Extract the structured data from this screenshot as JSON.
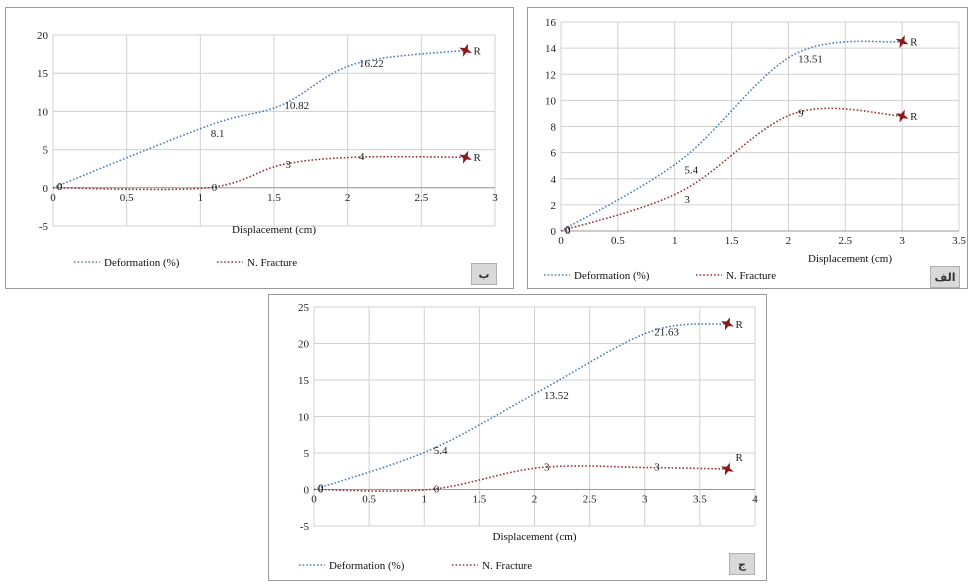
{
  "chart_data": [
    {
      "id": "b",
      "type": "line",
      "panel_label": "ب",
      "xlabel": "Displacement (cm)",
      "ylabel": "",
      "xlim": [
        0,
        3
      ],
      "ylim": [
        -5,
        20
      ],
      "xticks": [
        "0",
        "0.5",
        "1",
        "1.5",
        "2",
        "2.5",
        "3"
      ],
      "yticks": [
        "-5",
        "0",
        "5",
        "10",
        "15",
        "20"
      ],
      "grid": true,
      "legend_position": "bottom",
      "series": [
        {
          "name": "Deformation (%)",
          "color": "#4a7ebb",
          "x": [
            0,
            1.05,
            1.55,
            2.05,
            2.8
          ],
          "y": [
            0,
            8.1,
            10.82,
            16.22,
            18
          ],
          "labels": [
            "0",
            "8.1",
            "10.82",
            "16.22",
            "R"
          ]
        },
        {
          "name": "N. Fracture",
          "color": "#943634",
          "x": [
            0,
            1.05,
            1.55,
            2.05,
            2.8
          ],
          "y": [
            0,
            0,
            3,
            4,
            4
          ],
          "labels": [
            "0",
            "0",
            "3",
            "4",
            "R"
          ]
        }
      ]
    },
    {
      "id": "a",
      "type": "line",
      "panel_label": "الف",
      "xlabel": "Displacement (cm)",
      "ylabel": "",
      "xlim": [
        0,
        3.5
      ],
      "ylim": [
        0,
        16
      ],
      "xticks": [
        "0",
        "0.5",
        "1",
        "1.5",
        "2",
        "2.5",
        "3",
        "3.5"
      ],
      "yticks": [
        "0",
        "2",
        "4",
        "6",
        "8",
        "10",
        "12",
        "14",
        "16"
      ],
      "grid": true,
      "legend_position": "bottom",
      "series": [
        {
          "name": "Deformation (%)",
          "color": "#4a7ebb",
          "x": [
            0,
            1.05,
            2.05,
            3.0
          ],
          "y": [
            0,
            5.4,
            13.51,
            14.5
          ],
          "labels": [
            "0",
            "5.4",
            "13.51",
            "R"
          ]
        },
        {
          "name": "N. Fracture",
          "color": "#943634",
          "x": [
            0,
            1.05,
            2.05,
            3.0
          ],
          "y": [
            0,
            3,
            9,
            8.8
          ],
          "labels": [
            "0",
            "3",
            "9",
            "R"
          ]
        }
      ]
    },
    {
      "id": "c",
      "type": "line",
      "panel_label": "ج",
      "xlabel": "Displacement (cm)",
      "ylabel": "",
      "xlim": [
        0,
        4
      ],
      "ylim": [
        -5,
        25
      ],
      "xticks": [
        "0",
        "0.5",
        "1",
        "1.5",
        "2",
        "2.5",
        "3",
        "3.5",
        "4"
      ],
      "yticks": [
        "-5",
        "0",
        "5",
        "10",
        "15",
        "20",
        "25"
      ],
      "grid": true,
      "legend_position": "bottom",
      "series": [
        {
          "name": "Deformation (%)",
          "color": "#4a7ebb",
          "x": [
            0,
            1.05,
            2.05,
            3.05,
            3.75
          ],
          "y": [
            0,
            5.4,
            13.52,
            21.63,
            22.7
          ],
          "labels": [
            "0",
            "5.4",
            "13.52",
            "21.63",
            "R"
          ]
        },
        {
          "name": "N. Fracture",
          "color": "#943634",
          "x": [
            0,
            1.05,
            2.05,
            3.05,
            3.75
          ],
          "y": [
            0,
            0,
            3,
            3,
            2.8
          ],
          "labels": [
            "0",
            "0",
            "3",
            "3",
            "R"
          ]
        }
      ]
    }
  ]
}
